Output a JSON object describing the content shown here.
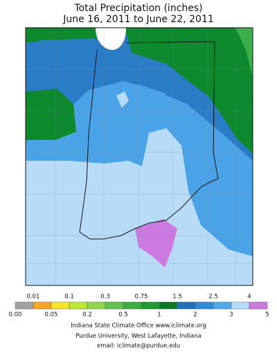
{
  "title": "Total Precipitation (inches)",
  "subtitle": "June 16, 2011 to June 22, 2011",
  "legend": {
    "labels": [
      "0.00",
      "0.01",
      "0.05",
      "0.1",
      "0.2",
      "0.3",
      "0.5",
      "0.75",
      "1",
      "1.5",
      "2",
      "2.5",
      "3",
      "4",
      "5"
    ],
    "colors": [
      "#a0a0a0",
      "#f7a823",
      "#f7e52a",
      "#bfe832",
      "#8fd64a",
      "#5ec24c",
      "#3aae40",
      "#1c9a2e",
      "#0a7a22",
      "#1f6fba",
      "#2f8ad8",
      "#52a8ec",
      "#b8dcf8",
      "#cc7ae0"
    ]
  },
  "footer": [
    "Indiana State Climate Office     www.iclimate.org",
    "Purdue University, West Lafayette, Indiana",
    "email:  iclimate@purdue.edu"
  ]
}
